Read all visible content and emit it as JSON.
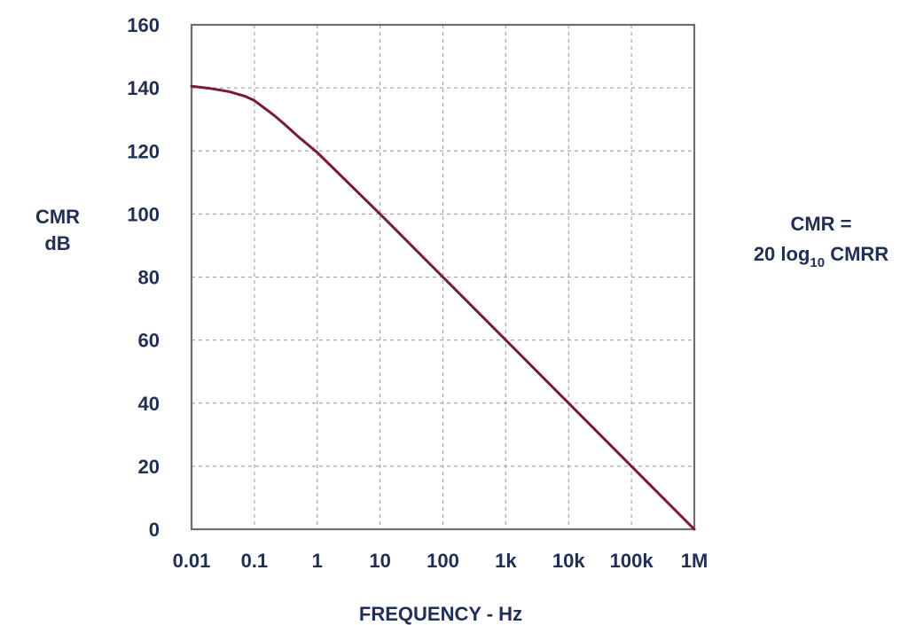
{
  "chart_data": {
    "type": "line",
    "xscale": "log",
    "ylabel_lines": [
      "CMR",
      "dB"
    ],
    "xlabel": "FREQUENCY - Hz",
    "x_ticks": [
      {
        "value": 0.01,
        "label": "0.01"
      },
      {
        "value": 0.1,
        "label": "0.1"
      },
      {
        "value": 1,
        "label": "1"
      },
      {
        "value": 10,
        "label": "10"
      },
      {
        "value": 100,
        "label": "100"
      },
      {
        "value": 1000,
        "label": "1k"
      },
      {
        "value": 10000,
        "label": "10k"
      },
      {
        "value": 100000,
        "label": "100k"
      },
      {
        "value": 1000000,
        "label": "1M"
      }
    ],
    "y_ticks": [
      0,
      20,
      40,
      60,
      80,
      100,
      120,
      140,
      160
    ],
    "xlim": [
      0.01,
      1000000
    ],
    "ylim": [
      0,
      160
    ],
    "grid": true,
    "series": [
      {
        "color": "#7a1a35",
        "points": [
          {
            "x": 0.01,
            "y": 140.5
          },
          {
            "x": 0.02,
            "y": 139.8
          },
          {
            "x": 0.04,
            "y": 138.8
          },
          {
            "x": 0.07,
            "y": 137.4
          },
          {
            "x": 0.1,
            "y": 136
          },
          {
            "x": 0.2,
            "y": 131.5
          },
          {
            "x": 0.3,
            "y": 128.5
          },
          {
            "x": 0.5,
            "y": 124.5
          },
          {
            "x": 1,
            "y": 119.5
          },
          {
            "x": 10,
            "y": 100
          },
          {
            "x": 100,
            "y": 80
          },
          {
            "x": 1000,
            "y": 60
          },
          {
            "x": 10000,
            "y": 40
          },
          {
            "x": 100000,
            "y": 20
          },
          {
            "x": 1000000,
            "y": 0
          }
        ]
      }
    ],
    "annotation": {
      "line1": "CMR  =",
      "line2_prefix": "20 log",
      "line2_sub": "10",
      "line2_suffix": " CMRR"
    }
  }
}
